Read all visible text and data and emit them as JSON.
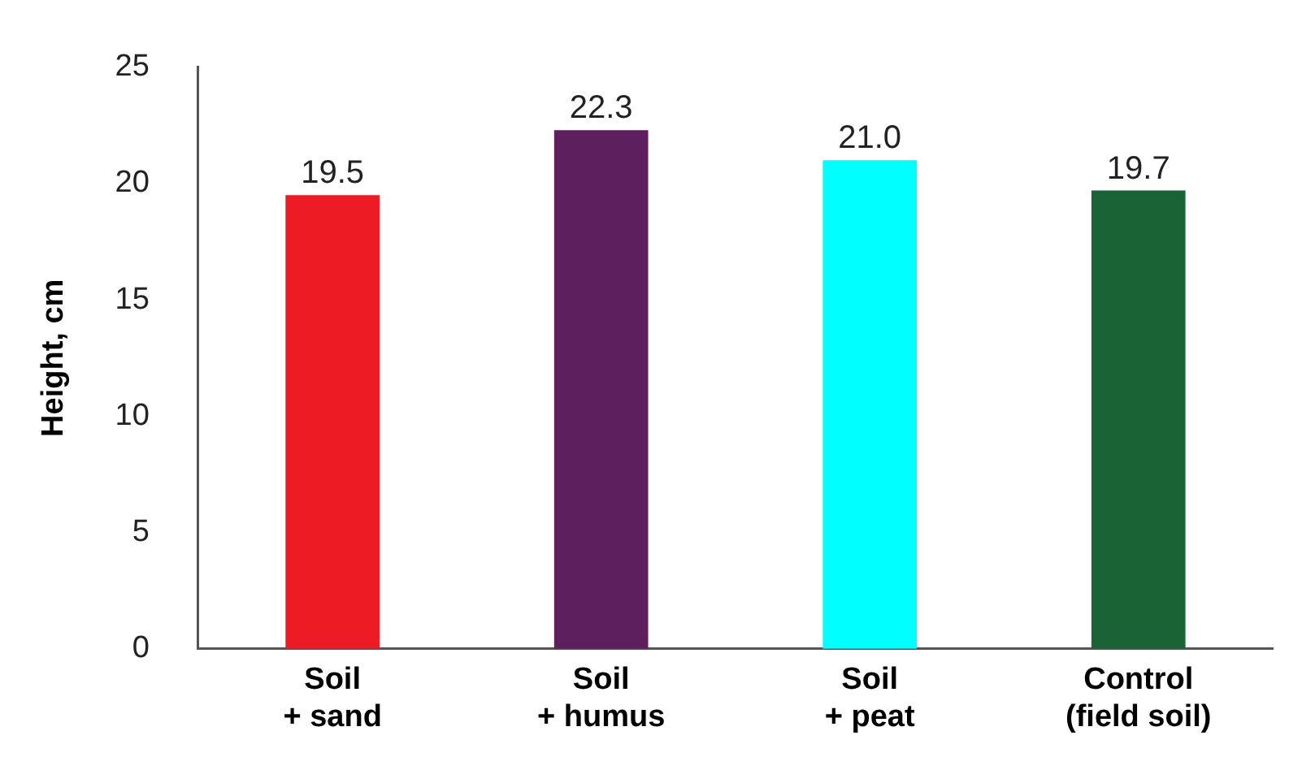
{
  "chart_data": {
    "type": "bar",
    "ylabel": "Height, cm",
    "categories": [
      "Soil\n+ sand",
      "Soil\n+ humus",
      "Soil\n+ peat",
      "Control\n(field soil)"
    ],
    "values": [
      19.5,
      22.3,
      21.0,
      19.7
    ],
    "colors": [
      "#ed1c24",
      "#5e1f5e",
      "#00ffff",
      "#1a6335"
    ],
    "value_labels": [
      "19.5",
      "22.3",
      "21.0",
      "19.7"
    ],
    "ylim": [
      0,
      25
    ],
    "yticks": [
      0,
      5,
      10,
      15,
      20,
      25
    ],
    "grid": false
  }
}
